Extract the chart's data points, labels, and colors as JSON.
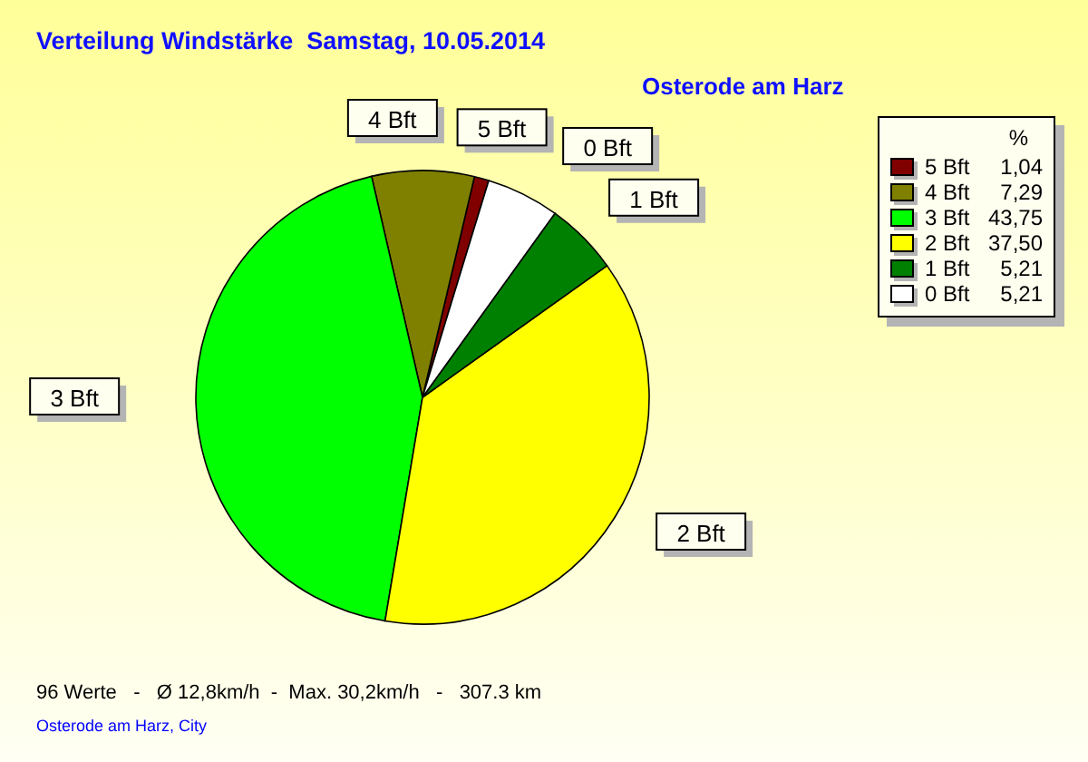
{
  "chart_data": {
    "type": "pie",
    "title": "Verteilung Windstärke  Samstag, 10.05.2014",
    "subtitle": "Osterode am Harz",
    "legend_title": "%",
    "categories": [
      "5 Bft",
      "4 Bft",
      "3 Bft",
      "2 Bft",
      "1 Bft",
      "0 Bft"
    ],
    "values": [
      1.04,
      7.29,
      43.75,
      37.5,
      5.21,
      5.21
    ],
    "value_labels": [
      "1,04",
      "7,29",
      "43,75",
      "37,50",
      "5,21",
      "5,21"
    ],
    "colors": [
      "#800000",
      "#808000",
      "#00ff00",
      "#ffff00",
      "#008000",
      "#ffffff"
    ],
    "legend": "top right",
    "annotations": [
      "96 Werte   -   Ø 12,8km/h  -  Max. 30,2km/h   -   307.3 km",
      "Osterode am Harz, City"
    ]
  }
}
